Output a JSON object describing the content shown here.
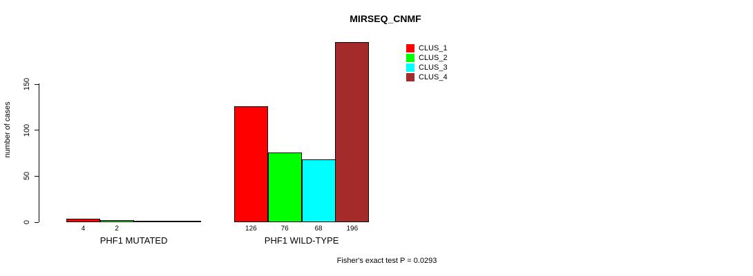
{
  "chart_data": {
    "type": "bar",
    "title": "MIRSEQ_CNMF",
    "xlabel": "",
    "ylabel": "number of cases",
    "ylim": [
      0,
      150
    ],
    "yticks": [
      0,
      50,
      100,
      150
    ],
    "grid": false,
    "legend_position": "top-right",
    "categories": [
      "PHF1 MUTATED",
      "PHF1 WILD-TYPE"
    ],
    "series": [
      {
        "name": "CLUS_1",
        "color": "#FF0000",
        "values": [
          4,
          126
        ]
      },
      {
        "name": "CLUS_2",
        "color": "#00FF00",
        "values": [
          2,
          76
        ]
      },
      {
        "name": "CLUS_3",
        "color": "#00FFFF",
        "values": [
          0,
          68
        ]
      },
      {
        "name": "CLUS_4",
        "color": "#A52A2A",
        "values": [
          0,
          196
        ]
      }
    ],
    "bar_value_labels": [
      [
        "4",
        "2",
        "",
        ""
      ],
      [
        "126",
        "76",
        "68",
        "196"
      ]
    ],
    "caption": "Fisher's exact test P = 0.0293"
  }
}
